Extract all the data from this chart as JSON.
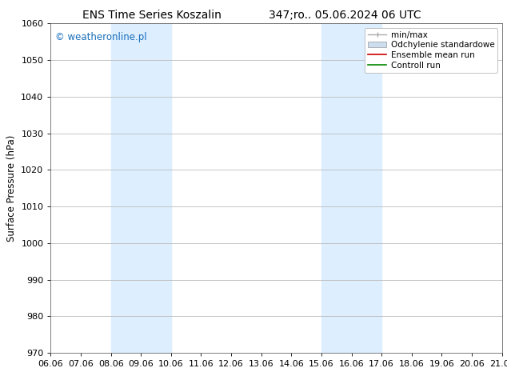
{
  "title_left": "ENS Time Series Koszalin",
  "title_right": "347;ro.. 05.06.2024 06 UTC",
  "ylabel": "Surface Pressure (hPa)",
  "ylim": [
    970,
    1060
  ],
  "yticks": [
    970,
    980,
    990,
    1000,
    1010,
    1020,
    1030,
    1040,
    1050,
    1060
  ],
  "xtick_labels": [
    "06.06",
    "07.06",
    "08.06",
    "09.06",
    "10.06",
    "11.06",
    "12.06",
    "13.06",
    "14.06",
    "15.06",
    "16.06",
    "17.06",
    "18.06",
    "19.06",
    "20.06",
    "21.06"
  ],
  "watermark": "© weatheronline.pl",
  "watermark_color": "#1a6fba",
  "bg_color": "#ffffff",
  "plot_bg_color": "#ffffff",
  "shaded_regions": [
    {
      "xstart": 2,
      "xend": 4,
      "color": "#ddeeff"
    },
    {
      "xstart": 9,
      "xend": 11,
      "color": "#ddeeff"
    }
  ],
  "legend_entries": [
    {
      "label": "min/max",
      "color": "#aaaaaa",
      "lw": 1.0,
      "style": "solid"
    },
    {
      "label": "Odchylenie standardowe",
      "color": "#ccddf0",
      "lw": 8,
      "style": "solid"
    },
    {
      "label": "Ensemble mean run",
      "color": "#cc0000",
      "lw": 1.2,
      "style": "solid"
    },
    {
      "label": "Controll run",
      "color": "#008800",
      "lw": 1.2,
      "style": "solid"
    }
  ],
  "grid_color": "#bbbbbb",
  "title_fontsize": 10,
  "tick_fontsize": 8,
  "ylabel_fontsize": 8.5,
  "legend_fontsize": 7.5
}
